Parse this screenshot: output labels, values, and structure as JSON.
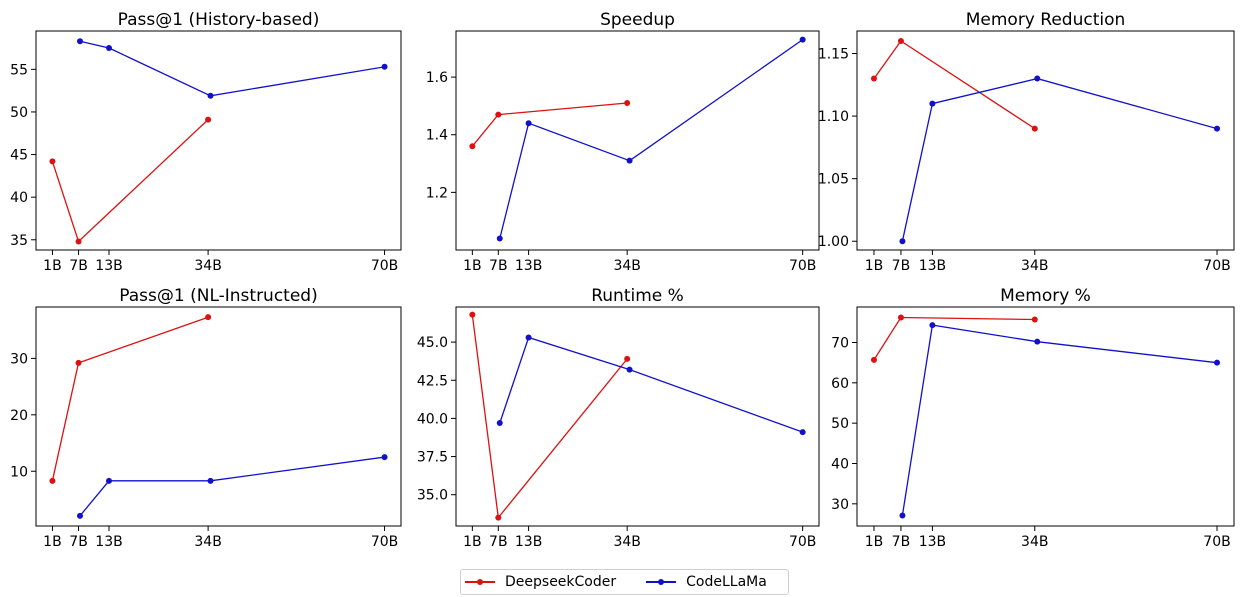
{
  "colors": {
    "deepseek": "#dd1111",
    "codellama": "#1111cc"
  },
  "legend": {
    "items": [
      {
        "label": "DeepseekCoder",
        "color": "#dd1111"
      },
      {
        "label": "CodeLLaMa",
        "color": "#1111cc"
      }
    ]
  },
  "chart_data": [
    {
      "type": "line",
      "title": "Pass@1 (History-based)",
      "x_categories": [
        "1B",
        "7B",
        "13B",
        "34B",
        "70B"
      ],
      "x_tick_values": [
        1.3,
        6.7,
        13,
        33.5,
        70
      ],
      "ylim": [
        33.8,
        59.5
      ],
      "yticks": [
        "35",
        "40",
        "45",
        "50",
        "55"
      ],
      "series": [
        {
          "name": "DeepseekCoder",
          "x": [
            1.3,
            6.7,
            33.5
          ],
          "y": [
            44.2,
            34.8,
            49.1
          ]
        },
        {
          "name": "CodeLLaMa",
          "x": [
            7,
            13,
            34,
            70
          ],
          "y": [
            58.3,
            57.5,
            51.9,
            55.3
          ]
        }
      ]
    },
    {
      "type": "line",
      "title": "Speedup",
      "x_categories": [
        "1B",
        "7B",
        "13B",
        "34B",
        "70B"
      ],
      "x_tick_values": [
        1.3,
        6.7,
        13,
        33.5,
        70
      ],
      "ylim": [
        1.0,
        1.76
      ],
      "yticks": [
        "1.2",
        "1.4",
        "1.6"
      ],
      "series": [
        {
          "name": "DeepseekCoder",
          "x": [
            1.3,
            6.7,
            33.5
          ],
          "y": [
            1.36,
            1.47,
            1.51
          ]
        },
        {
          "name": "CodeLLaMa",
          "x": [
            7,
            13,
            34,
            70
          ],
          "y": [
            1.04,
            1.44,
            1.31,
            1.73
          ]
        }
      ]
    },
    {
      "type": "line",
      "title": "Memory Reduction",
      "x_categories": [
        "1B",
        "7B",
        "13B",
        "34B",
        "70B"
      ],
      "x_tick_values": [
        1.3,
        6.7,
        13,
        33.5,
        70
      ],
      "ylim": [
        0.993,
        1.168
      ],
      "yticks": [
        "1.00",
        "1.05",
        "1.10",
        "1.15"
      ],
      "series": [
        {
          "name": "DeepseekCoder",
          "x": [
            1.3,
            6.7,
            33.5
          ],
          "y": [
            1.13,
            1.16,
            1.09
          ]
        },
        {
          "name": "CodeLLaMa",
          "x": [
            7,
            13,
            34,
            70
          ],
          "y": [
            1.0,
            1.11,
            1.13,
            1.09
          ]
        }
      ]
    },
    {
      "type": "line",
      "title": "Pass@1 (NL-Instructed)",
      "x_categories": [
        "1B",
        "7B",
        "13B",
        "34B",
        "70B"
      ],
      "x_tick_values": [
        1.3,
        6.7,
        13,
        33.5,
        70
      ],
      "ylim": [
        0.3,
        39.1
      ],
      "yticks": [
        "10",
        "20",
        "30"
      ],
      "series": [
        {
          "name": "DeepseekCoder",
          "x": [
            1.3,
            6.7,
            33.5
          ],
          "y": [
            8.3,
            29.2,
            37.3
          ]
        },
        {
          "name": "CodeLLaMa",
          "x": [
            7,
            13,
            34,
            70
          ],
          "y": [
            2.1,
            8.3,
            8.3,
            12.5
          ]
        }
      ]
    },
    {
      "type": "line",
      "title": "Runtime %",
      "x_categories": [
        "1B",
        "7B",
        "13B",
        "34B",
        "70B"
      ],
      "x_tick_values": [
        1.3,
        6.7,
        13,
        33.5,
        70
      ],
      "ylim": [
        32.95,
        47.3
      ],
      "yticks": [
        "35.0",
        "37.5",
        "40.0",
        "42.5",
        "45.0"
      ],
      "series": [
        {
          "name": "DeepseekCoder",
          "x": [
            1.3,
            6.7,
            33.5
          ],
          "y": [
            46.8,
            33.5,
            43.9
          ]
        },
        {
          "name": "CodeLLaMa",
          "x": [
            7,
            13,
            34,
            70
          ],
          "y": [
            39.7,
            45.3,
            43.2,
            39.1
          ]
        }
      ]
    },
    {
      "type": "line",
      "title": "Memory %",
      "x_categories": [
        "1B",
        "7B",
        "13B",
        "34B",
        "70B"
      ],
      "x_tick_values": [
        1.3,
        6.7,
        13,
        33.5,
        70
      ],
      "ylim": [
        24.5,
        78.8
      ],
      "yticks": [
        "30",
        "40",
        "50",
        "60",
        "70"
      ],
      "series": [
        {
          "name": "DeepseekCoder",
          "x": [
            1.3,
            6.7,
            33.5
          ],
          "y": [
            65.7,
            76.2,
            75.7
          ]
        },
        {
          "name": "CodeLLaMa",
          "x": [
            7,
            13,
            34,
            70
          ],
          "y": [
            27.1,
            74.3,
            70.2,
            65.0
          ]
        }
      ]
    }
  ]
}
